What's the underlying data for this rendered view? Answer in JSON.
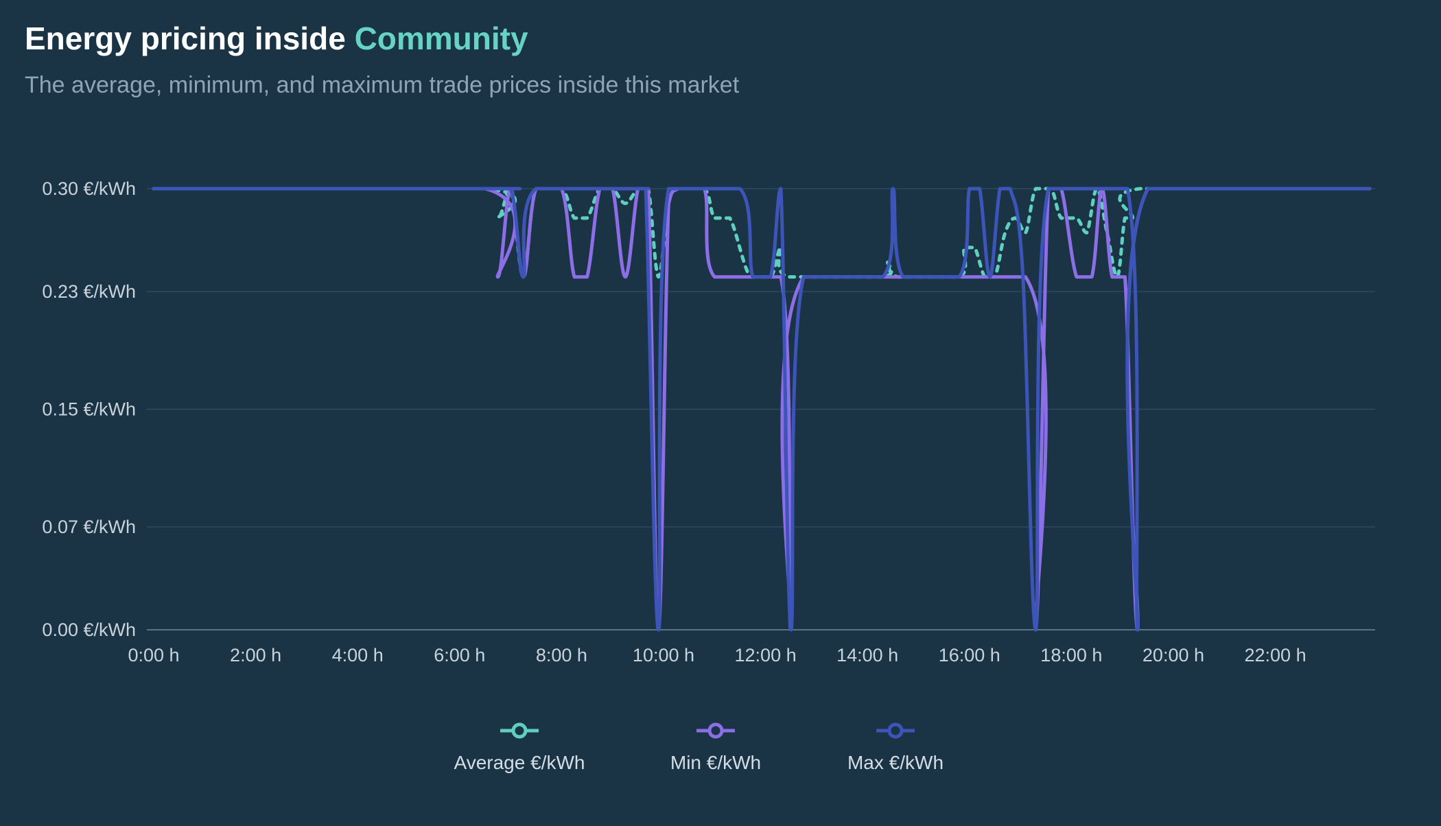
{
  "header": {
    "title_prefix": "Energy pricing inside",
    "title_accent": "Community",
    "subtitle": "The average, minimum, and maximum trade prices inside this market"
  },
  "colors": {
    "background": "#1a3446",
    "accent": "#66d4c4",
    "average": "#5fd0c0",
    "min": "#8c6ee6",
    "max": "#3d55b8",
    "grid": "#2e4a5d"
  },
  "chart_data": {
    "type": "line",
    "title": "Energy pricing inside Community",
    "subtitle": "The average, minimum, and maximum trade prices inside this market",
    "x_unit": "hour",
    "xlim": [
      0,
      23.85
    ],
    "ylim": [
      0,
      0.3
    ],
    "y_ticks": [
      0.0,
      0.07,
      0.15,
      0.23,
      0.3
    ],
    "y_tick_labels": [
      "0.00 €/kWh",
      "0.07 €/kWh",
      "0.15 €/kWh",
      "0.23 €/kWh",
      "0.30 €/kWh"
    ],
    "x_ticks": [
      0,
      2,
      4,
      6,
      8,
      10,
      12,
      14,
      16,
      18,
      20,
      22
    ],
    "x_tick_labels": [
      "0:00 h",
      "2:00 h",
      "4:00 h",
      "6:00 h",
      "8:00 h",
      "10:00 h",
      "12:00 h",
      "14:00 h",
      "16:00 h",
      "18:00 h",
      "20:00 h",
      "22:00 h"
    ],
    "grid": true,
    "legend_position": "bottom-center",
    "series": [
      {
        "name": "Average €/kWh",
        "style": "dotted",
        "points": [
          [
            0,
            0.3
          ],
          [
            6.5,
            0.3
          ],
          [
            6.75,
            0.28
          ],
          [
            7.0,
            0.3
          ],
          [
            7.25,
            0.24
          ],
          [
            7.5,
            0.3
          ],
          [
            8.0,
            0.3
          ],
          [
            8.25,
            0.28
          ],
          [
            8.5,
            0.28
          ],
          [
            8.75,
            0.3
          ],
          [
            9.0,
            0.3
          ],
          [
            9.25,
            0.29
          ],
          [
            9.5,
            0.3
          ],
          [
            9.7,
            0.3
          ],
          [
            9.9,
            0.24
          ],
          [
            10.1,
            0.29
          ],
          [
            10.3,
            0.3
          ],
          [
            10.8,
            0.3
          ],
          [
            11.0,
            0.28
          ],
          [
            11.3,
            0.28
          ],
          [
            11.7,
            0.24
          ],
          [
            12.1,
            0.24
          ],
          [
            12.3,
            0.26
          ],
          [
            12.45,
            0.24
          ],
          [
            14.3,
            0.24
          ],
          [
            14.4,
            0.25
          ],
          [
            14.6,
            0.24
          ],
          [
            15.8,
            0.24
          ],
          [
            15.9,
            0.26
          ],
          [
            16.1,
            0.26
          ],
          [
            16.3,
            0.24
          ],
          [
            16.5,
            0.24
          ],
          [
            16.7,
            0.27
          ],
          [
            16.9,
            0.28
          ],
          [
            17.1,
            0.27
          ],
          [
            17.3,
            0.3
          ],
          [
            17.6,
            0.3
          ],
          [
            17.8,
            0.28
          ],
          [
            18.1,
            0.28
          ],
          [
            18.3,
            0.27
          ],
          [
            18.5,
            0.3
          ],
          [
            18.7,
            0.27
          ],
          [
            18.9,
            0.24
          ],
          [
            19.05,
            0.28
          ],
          [
            19.2,
            0.28
          ],
          [
            19.35,
            0.3
          ],
          [
            23.85,
            0.3
          ]
        ]
      },
      {
        "name": "Min €/kWh",
        "style": "solid",
        "points": [
          [
            0,
            0.3
          ],
          [
            6.5,
            0.3
          ],
          [
            6.75,
            0.24
          ],
          [
            7.0,
            0.3
          ],
          [
            7.25,
            0.24
          ],
          [
            7.5,
            0.3
          ],
          [
            8.0,
            0.3
          ],
          [
            8.25,
            0.24
          ],
          [
            8.5,
            0.24
          ],
          [
            8.75,
            0.3
          ],
          [
            9.0,
            0.3
          ],
          [
            9.25,
            0.24
          ],
          [
            9.5,
            0.3
          ],
          [
            9.7,
            0.3
          ],
          [
            9.9,
            0.0
          ],
          [
            10.1,
            0.29
          ],
          [
            10.3,
            0.3
          ],
          [
            10.8,
            0.3
          ],
          [
            11.0,
            0.24
          ],
          [
            12.3,
            0.24
          ],
          [
            12.5,
            0.0
          ],
          [
            12.75,
            0.24
          ],
          [
            17.1,
            0.24
          ],
          [
            17.3,
            0.0
          ],
          [
            17.55,
            0.3
          ],
          [
            17.8,
            0.3
          ],
          [
            18.1,
            0.24
          ],
          [
            18.4,
            0.24
          ],
          [
            18.6,
            0.3
          ],
          [
            18.8,
            0.24
          ],
          [
            19.05,
            0.24
          ],
          [
            19.3,
            0.0
          ],
          [
            19.5,
            0.3
          ],
          [
            23.85,
            0.3
          ]
        ]
      },
      {
        "name": "Max €/kWh",
        "style": "solid",
        "points": [
          [
            0,
            0.3
          ],
          [
            6.5,
            0.3
          ],
          [
            7.0,
            0.3
          ],
          [
            7.25,
            0.24
          ],
          [
            7.5,
            0.3
          ],
          [
            9.5,
            0.3
          ],
          [
            9.65,
            0.3
          ],
          [
            9.9,
            0.0
          ],
          [
            10.1,
            0.3
          ],
          [
            11.5,
            0.3
          ],
          [
            11.75,
            0.24
          ],
          [
            12.1,
            0.24
          ],
          [
            12.3,
            0.3
          ],
          [
            12.5,
            0.0
          ],
          [
            12.75,
            0.24
          ],
          [
            14.3,
            0.24
          ],
          [
            14.5,
            0.3
          ],
          [
            14.7,
            0.24
          ],
          [
            15.8,
            0.24
          ],
          [
            16.0,
            0.3
          ],
          [
            16.2,
            0.3
          ],
          [
            16.4,
            0.24
          ],
          [
            16.6,
            0.3
          ],
          [
            16.8,
            0.3
          ],
          [
            17.05,
            0.24
          ],
          [
            17.3,
            0.0
          ],
          [
            17.55,
            0.3
          ],
          [
            19.1,
            0.3
          ],
          [
            19.3,
            0.0
          ],
          [
            19.5,
            0.3
          ],
          [
            23.85,
            0.3
          ]
        ]
      }
    ]
  },
  "legend": {
    "items": [
      {
        "label": "Average €/kWh",
        "color": "#5fd0c0"
      },
      {
        "label": "Min €/kWh",
        "color": "#8c6ee6"
      },
      {
        "label": "Max €/kWh",
        "color": "#3d55b8"
      }
    ]
  }
}
